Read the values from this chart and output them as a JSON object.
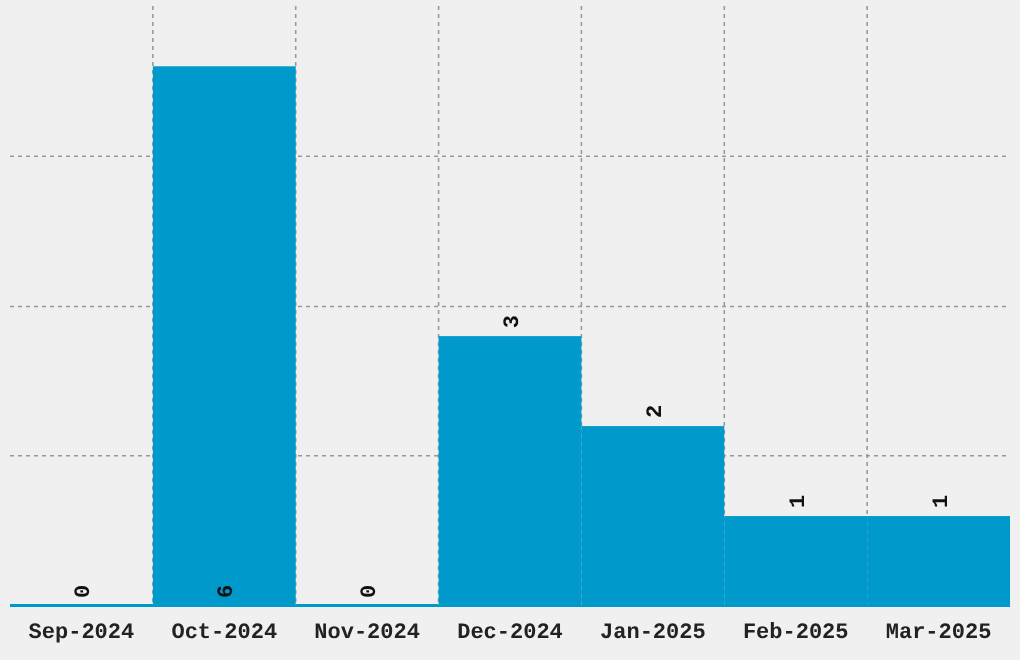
{
  "chart_data": {
    "type": "bar",
    "categories": [
      "Sep-2024",
      "Oct-2024",
      "Nov-2024",
      "Dec-2024",
      "Jan-2025",
      "Feb-2025",
      "Mar-2025"
    ],
    "values": [
      0,
      6,
      0,
      3,
      2,
      1,
      1
    ],
    "color": "#0099cc",
    "data_labels": true,
    "ylim": [
      0,
      6.67
    ],
    "yticks": [
      {
        "value": 0,
        "label": null
      },
      {
        "value": 1.67,
        "label": null
      },
      {
        "value": 3.33,
        "label": null
      },
      {
        "value": 5,
        "label": null
      }
    ],
    "grid": true,
    "tick_labels": "x"
  }
}
